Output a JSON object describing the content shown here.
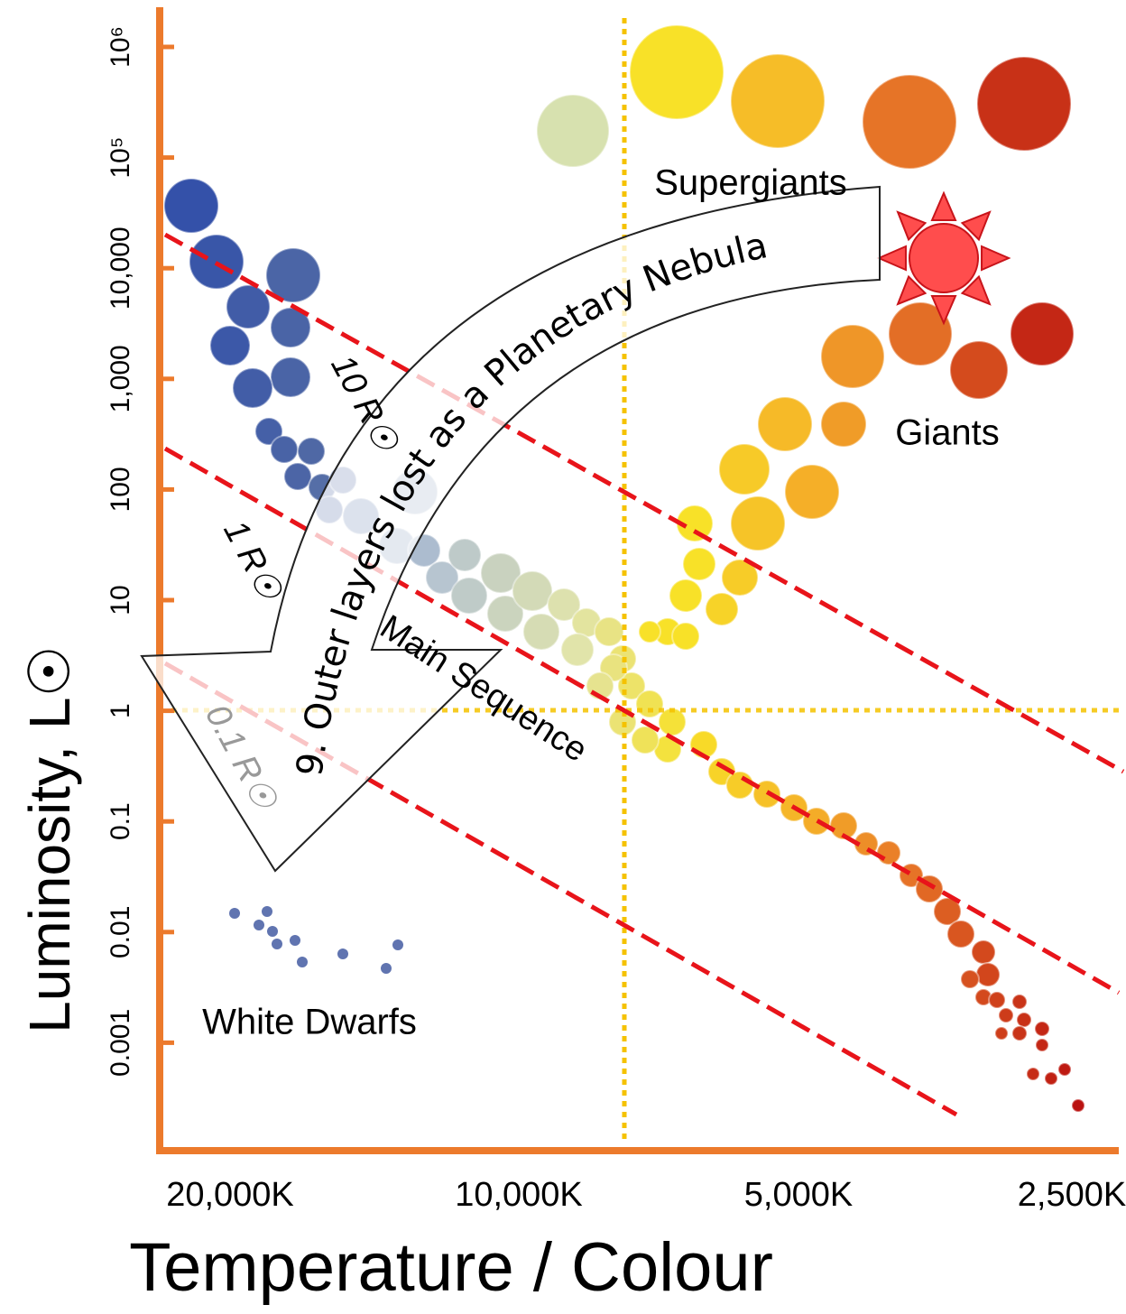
{
  "axes": {
    "y_label": "Luminosity, L☉",
    "x_label": "Temperature / Colour",
    "y_ticks": [
      "10⁶",
      "10⁵",
      "10,000",
      "1,000",
      "100",
      "10",
      "1",
      "0.1",
      "0.01",
      "0.001"
    ],
    "x_ticks": [
      "20,000K",
      "10,000K",
      "5,000K",
      "2,500K"
    ]
  },
  "regions": {
    "supergiants": "Supergiants",
    "giants": "Giants",
    "main_sequence": "Main Sequence",
    "white_dwarfs": "White Dwarfs"
  },
  "radius_lines": [
    "10 R☉",
    "1 R☉",
    "0.1 R☉"
  ],
  "arrow_label": "9. Outer layers lost as a Planetary Nebula"
}
